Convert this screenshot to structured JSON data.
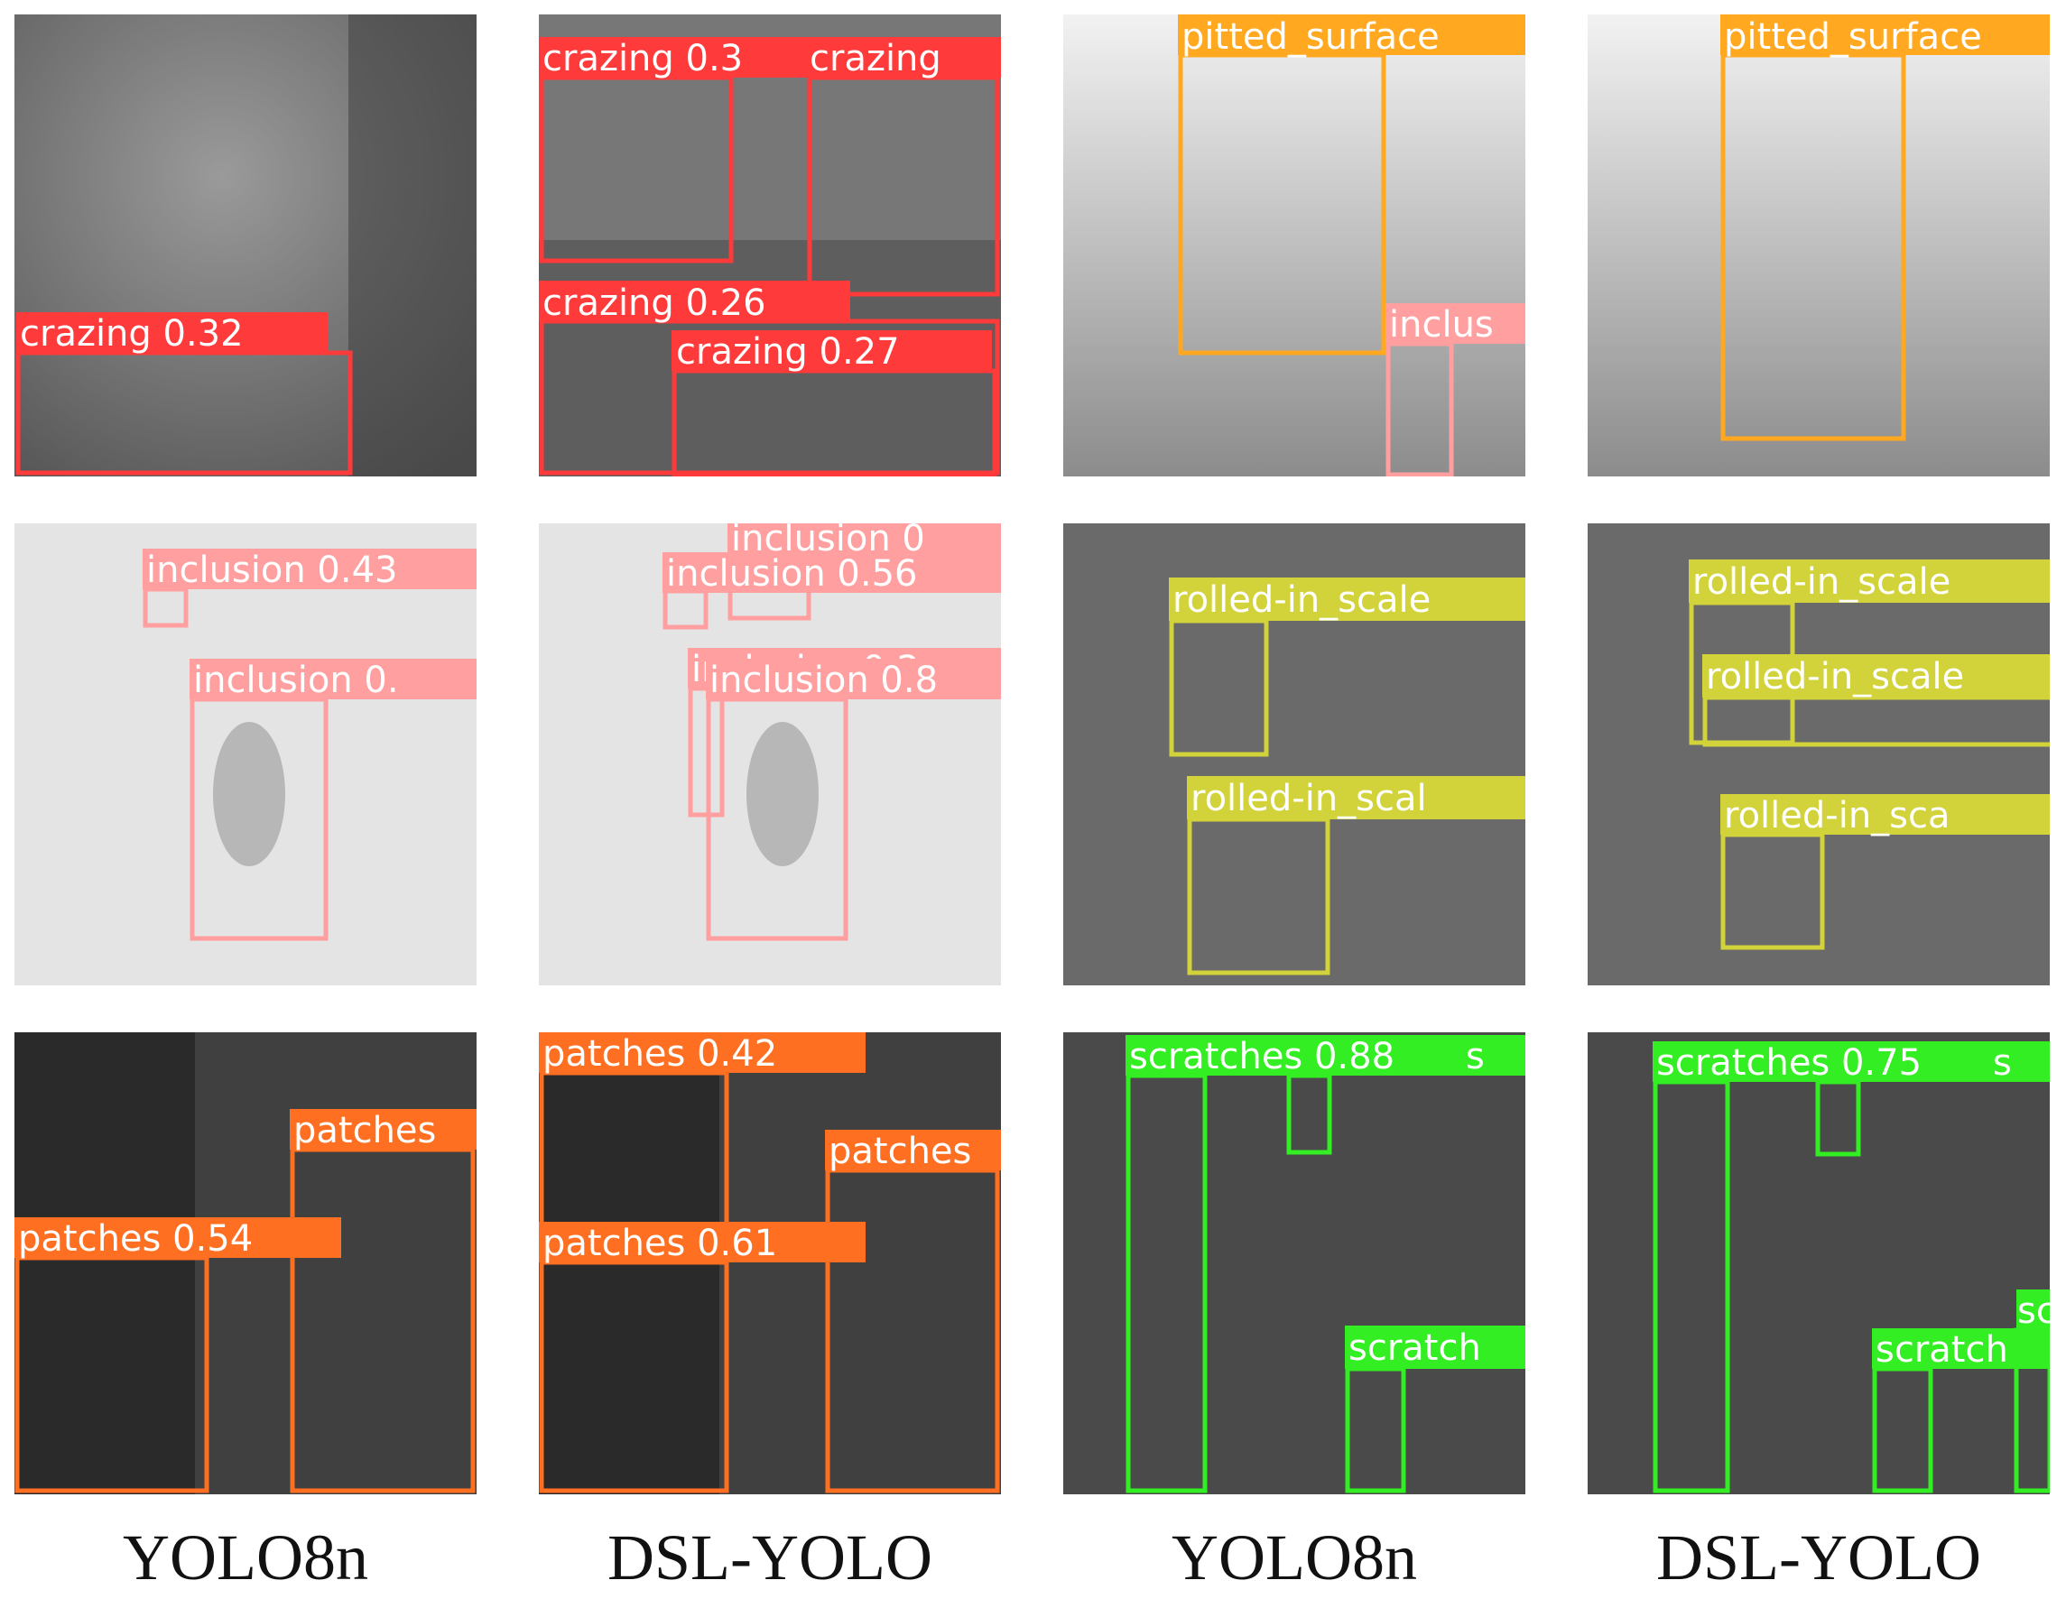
{
  "colors": {
    "crazing": "#ff3a3a",
    "inclusion": "#ff9f9f",
    "pitted_surface": "#ffa820",
    "rolled_in_scale": "#d2d23a",
    "patches": "#ff6f22",
    "scratches": "#33ee22"
  },
  "captions": [
    "YOLO8n",
    "DSL-YOLO",
    "YOLO8n",
    "DSL-YOLO"
  ],
  "panels": {
    "r0c0": {
      "detections": [
        {
          "label": "crazing 0.32",
          "color": "crazing"
        }
      ]
    },
    "r0c1": {
      "detections": [
        {
          "label": "crazing 0.3",
          "color": "crazing"
        },
        {
          "label": "crazing",
          "color": "crazing"
        },
        {
          "label": "crazing 0.26",
          "color": "crazing"
        },
        {
          "label": "crazing 0.27",
          "color": "crazing"
        }
      ]
    },
    "r0c2": {
      "detections": [
        {
          "label": "pitted_surface",
          "color": "pitted_surface"
        },
        {
          "label": "inclus",
          "color": "inclusion"
        }
      ]
    },
    "r0c3": {
      "detections": [
        {
          "label": "pitted_surface",
          "color": "pitted_surface"
        }
      ]
    },
    "r1c0": {
      "detections": [
        {
          "label": "inclusion 0.43",
          "color": "inclusion"
        },
        {
          "label": "inclusion 0.",
          "color": "inclusion"
        }
      ]
    },
    "r1c1": {
      "detections": [
        {
          "label": "inclusion 0",
          "color": "inclusion"
        },
        {
          "label": "inclusion 0.56",
          "color": "inclusion"
        },
        {
          "label": "inclusion 0.2",
          "color": "inclusion"
        },
        {
          "label": "inclusion 0.8",
          "color": "inclusion"
        }
      ]
    },
    "r1c2": {
      "detections": [
        {
          "label": "rolled-in_scale",
          "color": "rolled_in_scale"
        },
        {
          "label": "rolled-in_scal",
          "color": "rolled_in_scale"
        }
      ]
    },
    "r1c3": {
      "detections": [
        {
          "label": "rolled-in_scale",
          "color": "rolled_in_scale"
        },
        {
          "label": "rolled-in_scale",
          "color": "rolled_in_scale"
        },
        {
          "label": "rolled-in_sca",
          "color": "rolled_in_scale"
        }
      ]
    },
    "r2c0": {
      "detections": [
        {
          "label": "patches",
          "color": "patches"
        },
        {
          "label": "patches 0.54",
          "color": "patches"
        }
      ]
    },
    "r2c1": {
      "detections": [
        {
          "label": "patches 0.42",
          "color": "patches"
        },
        {
          "label": "patches",
          "color": "patches"
        },
        {
          "label": "patches 0.61",
          "color": "patches"
        }
      ]
    },
    "r2c2": {
      "detections": [
        {
          "label": "scratches 0.88",
          "color": "scratches"
        },
        {
          "label": "s",
          "color": "scratches"
        },
        {
          "label": "scratch",
          "color": "scratches"
        }
      ]
    },
    "r2c3": {
      "detections": [
        {
          "label": "scratches 0.75",
          "color": "scratches"
        },
        {
          "label": "s",
          "color": "scratches"
        },
        {
          "label": "scratch",
          "color": "scratches"
        },
        {
          "label": "sc",
          "color": "scratches"
        }
      ]
    }
  }
}
